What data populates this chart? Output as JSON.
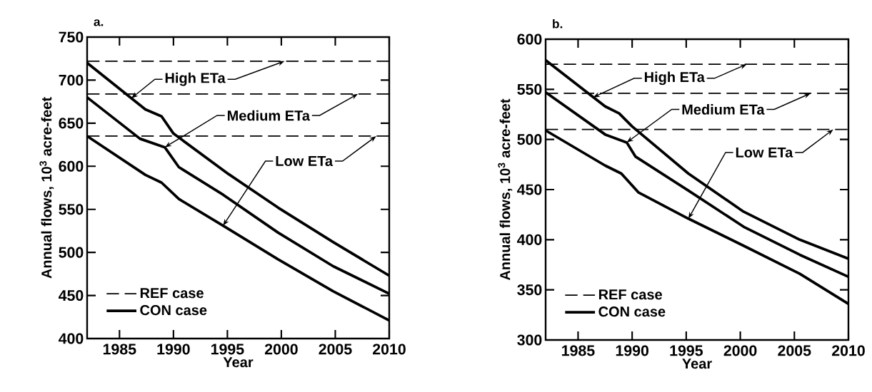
{
  "chart_data": [
    {
      "type": "line",
      "title": "a.",
      "xlabel": "Year",
      "ylabel": "Annual flows, 10$^{3}$ acre-feet",
      "xlim": [
        1982,
        2010
      ],
      "xticks": [
        1985,
        1990,
        1995,
        2000,
        2005,
        2010
      ],
      "ylim": [
        400,
        750
      ],
      "yticks": [
        400,
        450,
        500,
        550,
        600,
        650,
        700,
        750
      ],
      "legend": "bottom left",
      "series": [
        {
          "name": "REF case",
          "color": "#000000",
          "line_style": "dashed",
          "x": [
            1982,
            2010
          ],
          "values": [
            722,
            722
          ]
        },
        {
          "color": "#000000",
          "line_style": "dashed",
          "x": [
            1982,
            2010
          ],
          "values": [
            684,
            684
          ]
        },
        {
          "color": "#000000",
          "line_style": "dashed",
          "x": [
            1982,
            2010
          ],
          "values": [
            635,
            635
          ]
        },
        {
          "name": "CON case",
          "color": "#000000",
          "line_style": "solid",
          "x": [
            1982,
            1987.4,
            1988.9,
            1990,
            1995.1,
            1999.7,
            2004.8,
            2010
          ],
          "values": [
            720,
            666,
            658,
            638,
            591,
            552,
            512,
            473
          ]
        },
        {
          "color": "#000000",
          "line_style": "solid",
          "x": [
            1982,
            1986.9,
            1989.2,
            1990.5,
            1994.6,
            1999.7,
            2004.8,
            2010
          ],
          "values": [
            680,
            632,
            622,
            599,
            567,
            523,
            484,
            452
          ]
        },
        {
          "color": "#000000",
          "line_style": "solid",
          "x": [
            1982,
            1987.4,
            1988.9,
            1990.5,
            1994.6,
            1999.7,
            2004.8,
            2010
          ],
          "values": [
            635,
            590,
            581,
            562,
            531,
            492,
            455,
            421
          ]
        }
      ],
      "annotations": [
        {
          "text": "High ETa",
          "x": 1986.1,
          "y": 679
        },
        {
          "text": "Medium ETa",
          "x": 1989.2,
          "y": 622
        },
        {
          "text": "Low ETa",
          "x": 1994.6,
          "y": 531
        }
      ]
    },
    {
      "type": "line",
      "title": "b.",
      "xlabel": "Year",
      "ylabel": "Annual flows, 10$^{3}$ acre-feet",
      "xlim": [
        1982,
        2010
      ],
      "xticks": [
        1985,
        1990,
        1995,
        2000,
        2005,
        2010
      ],
      "ylim": [
        300,
        600
      ],
      "yticks": [
        300,
        350,
        400,
        450,
        500,
        550,
        600
      ],
      "legend": "bottom left",
      "series": [
        {
          "name": "REF case",
          "color": "#000000",
          "line_style": "dashed",
          "x": [
            1982,
            2010
          ],
          "values": [
            575,
            575
          ]
        },
        {
          "color": "#000000",
          "line_style": "dashed",
          "x": [
            1982,
            2010
          ],
          "values": [
            546,
            546
          ]
        },
        {
          "color": "#000000",
          "line_style": "dashed",
          "x": [
            1982,
            2010
          ],
          "values": [
            510,
            510
          ]
        },
        {
          "name": "CON case",
          "color": "#000000",
          "line_style": "solid",
          "x": [
            1982,
            1987.5,
            1988.8,
            1990,
            1995.2,
            2000.3,
            2005.5,
            2010
          ],
          "values": [
            579,
            533,
            526,
            513,
            466,
            428,
            400,
            381
          ]
        },
        {
          "color": "#000000",
          "line_style": "solid",
          "x": [
            1982,
            1987.5,
            1989.5,
            1990.3,
            1995.2,
            2000.3,
            2005.5,
            2010
          ],
          "values": [
            547,
            505,
            497,
            483,
            449,
            413,
            385,
            363
          ]
        },
        {
          "color": "#000000",
          "line_style": "solid",
          "x": [
            1982,
            1987.5,
            1989.0,
            1990.6,
            1995.2,
            2000.3,
            2005.5,
            2010
          ],
          "values": [
            509,
            474,
            466,
            447,
            421,
            394,
            366,
            336
          ]
        }
      ],
      "annotations": [
        {
          "text": "High ETa",
          "x": 1986.4,
          "y": 542
        },
        {
          "text": "Medium ETa",
          "x": 1989.5,
          "y": 497
        },
        {
          "text": "Low ETa",
          "x": 1995.2,
          "y": 421
        }
      ]
    }
  ]
}
